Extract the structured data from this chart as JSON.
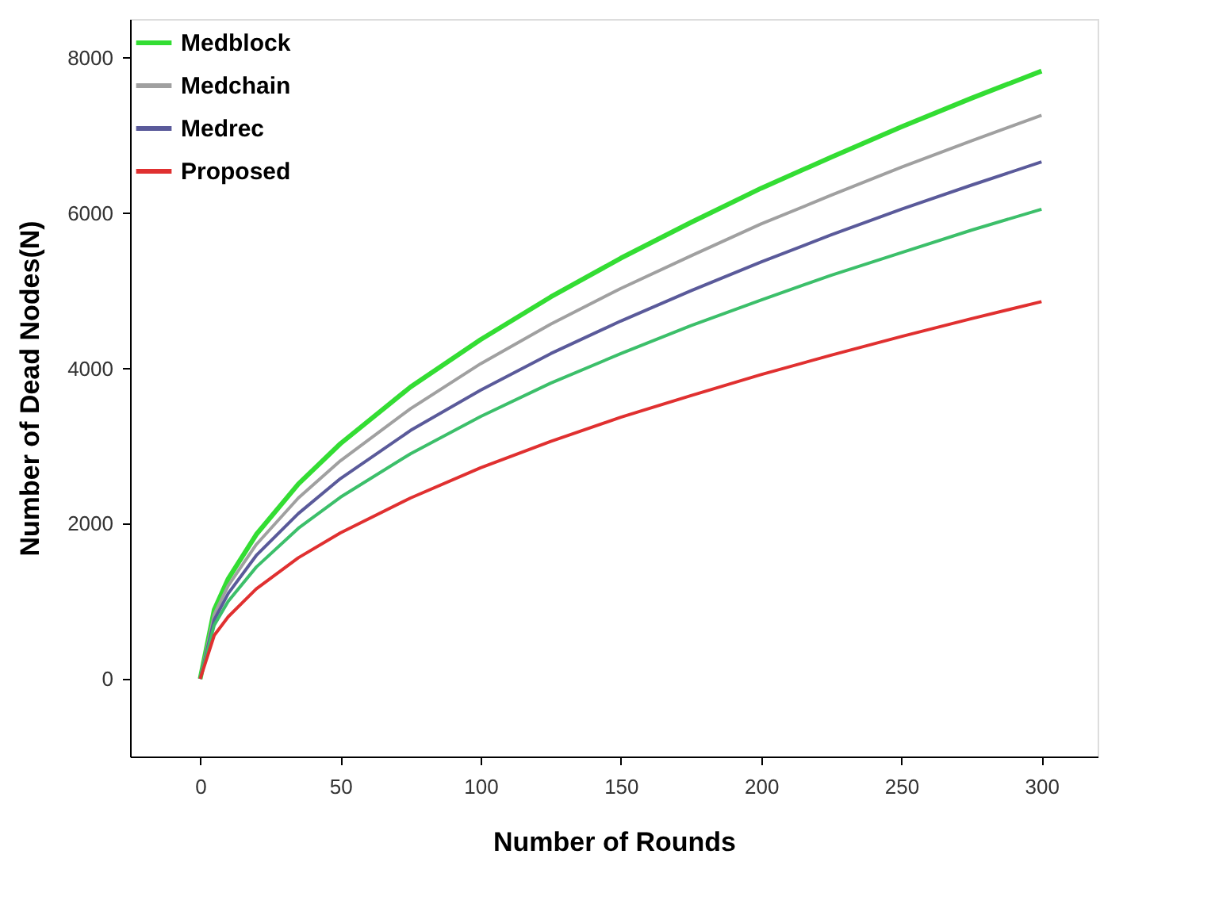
{
  "chart_data": {
    "type": "line",
    "xlabel": "Number of Rounds",
    "ylabel": "Number of Dead Nodes(N)",
    "x": [
      0,
      5,
      10,
      20,
      35,
      50,
      75,
      100,
      125,
      150,
      175,
      200,
      225,
      250,
      275,
      300
    ],
    "series": [
      {
        "name": "Medblock",
        "color": "#33dd33",
        "values": [
          0,
          890,
          1290,
          1860,
          2510,
          3030,
          3760,
          4370,
          4920,
          5420,
          5880,
          6320,
          6720,
          7110,
          7480,
          7830
        ]
      },
      {
        "name": "Medchain",
        "color": "#a0a0a0",
        "values": [
          0,
          830,
          1200,
          1730,
          2330,
          2810,
          3480,
          4060,
          4570,
          5030,
          5450,
          5860,
          6230,
          6590,
          6930,
          7260
        ]
      },
      {
        "name": "Medrec",
        "color": "#5a5a9a",
        "values": [
          0,
          760,
          1100,
          1590,
          2130,
          2580,
          3200,
          3720,
          4190,
          4610,
          5000,
          5370,
          5720,
          6050,
          6360,
          6660
        ]
      },
      {
        "color": "#3cbf6a",
        "values": [
          0,
          690,
          1000,
          1440,
          1940,
          2340,
          2900,
          3380,
          3810,
          4190,
          4550,
          4880,
          5200,
          5490,
          5780,
          6050
        ]
      },
      {
        "name": "Proposed",
        "color": "#e03030",
        "values": [
          0,
          560,
          800,
          1160,
          1560,
          1880,
          2330,
          2720,
          3060,
          3370,
          3650,
          3920,
          4170,
          4410,
          4640,
          4860
        ]
      }
    ],
    "xlim": [
      -25,
      320
    ],
    "ylim": [
      -1000,
      8500
    ],
    "xticks": [
      0,
      50,
      100,
      150,
      200,
      250,
      300
    ],
    "yticks": [
      0,
      2000,
      4000,
      6000,
      8000
    ],
    "grid": false,
    "legend": "top left",
    "marker": "none",
    "line_style": "solid"
  }
}
